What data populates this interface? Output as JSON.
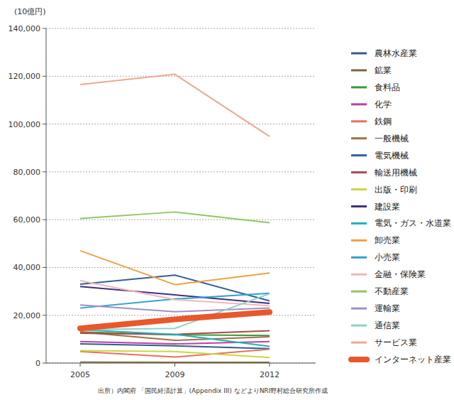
{
  "chart_data": {
    "type": "line",
    "y_label": "(10億円)",
    "source": "出所）内閣府 「国民経済計算」(Appendix III) などよりNRI野村総合研究所作成",
    "categories": [
      "2005",
      "2009",
      "2012"
    ],
    "ylim": [
      0,
      140000
    ],
    "yticks": [
      0,
      {
        "value": 20000,
        "label": "20,000"
      },
      {
        "value": 40000,
        "label": "40,000"
      },
      {
        "value": 60000,
        "label": "60,000"
      },
      {
        "value": 80000,
        "label": "80,000"
      },
      {
        "value": 100000,
        "label": "100,000"
      },
      {
        "value": 120000,
        "label": "120,000"
      },
      {
        "value": 140000,
        "label": "140,000"
      }
    ],
    "grid": true,
    "legend": "right",
    "series": [
      {
        "name": "農林水産業",
        "color": "#2e5e8e",
        "values": [
          8000,
          7200,
          6000
        ]
      },
      {
        "name": "鉱業",
        "color": "#7a6a3a",
        "values": [
          400,
          300,
          300
        ]
      },
      {
        "name": "食料品",
        "color": "#3a9a3a",
        "values": [
          13000,
          11800,
          11500
        ]
      },
      {
        "name": "化学",
        "color": "#c040a0",
        "values": [
          9000,
          8000,
          9000
        ]
      },
      {
        "name": "鉄鋼",
        "color": "#e87060",
        "values": [
          4800,
          2500,
          5800
        ]
      },
      {
        "name": "一般機械",
        "color": "#a07040",
        "values": [
          13000,
          9500,
          11000
        ]
      },
      {
        "name": "電気機械",
        "color": "#3060a0",
        "values": [
          33000,
          36800,
          26000
        ]
      },
      {
        "name": "輸送用機械",
        "color": "#b04848",
        "values": [
          12500,
          12000,
          13500
        ]
      },
      {
        "name": "出版・印刷",
        "color": "#c8d840",
        "values": [
          5200,
          4800,
          2300
        ]
      },
      {
        "name": "建設業",
        "color": "#403080",
        "values": [
          32000,
          28500,
          25000
        ]
      },
      {
        "name": "電気・ガス・水道業",
        "color": "#20b0c0",
        "values": [
          14000,
          12000,
          7000
        ]
      },
      {
        "name": "卸売業",
        "color": "#f0a040",
        "values": [
          47000,
          32800,
          37700
        ]
      },
      {
        "name": "小売業",
        "color": "#30a0d0",
        "values": [
          23000,
          26800,
          29200
        ]
      },
      {
        "name": "金融・保険業",
        "color": "#f0b8b8",
        "values": [
          34500,
          26500,
          24000
        ]
      },
      {
        "name": "不動産業",
        "color": "#90c860",
        "values": [
          60500,
          63200,
          58700
        ]
      },
      {
        "name": "運輸業",
        "color": "#a090c8",
        "values": [
          24300,
          21500,
          23000
        ]
      },
      {
        "name": "通信業",
        "color": "#90d0c8",
        "values": [
          14000,
          14500,
          29000
        ]
      },
      {
        "name": "サービス業",
        "color": "#f0a890",
        "values": [
          116500,
          120800,
          94800
        ]
      },
      {
        "name": "インターネット産業",
        "color": "#e8582a",
        "line_style": "thick",
        "values": [
          14500,
          18300,
          21300
        ]
      }
    ]
  }
}
